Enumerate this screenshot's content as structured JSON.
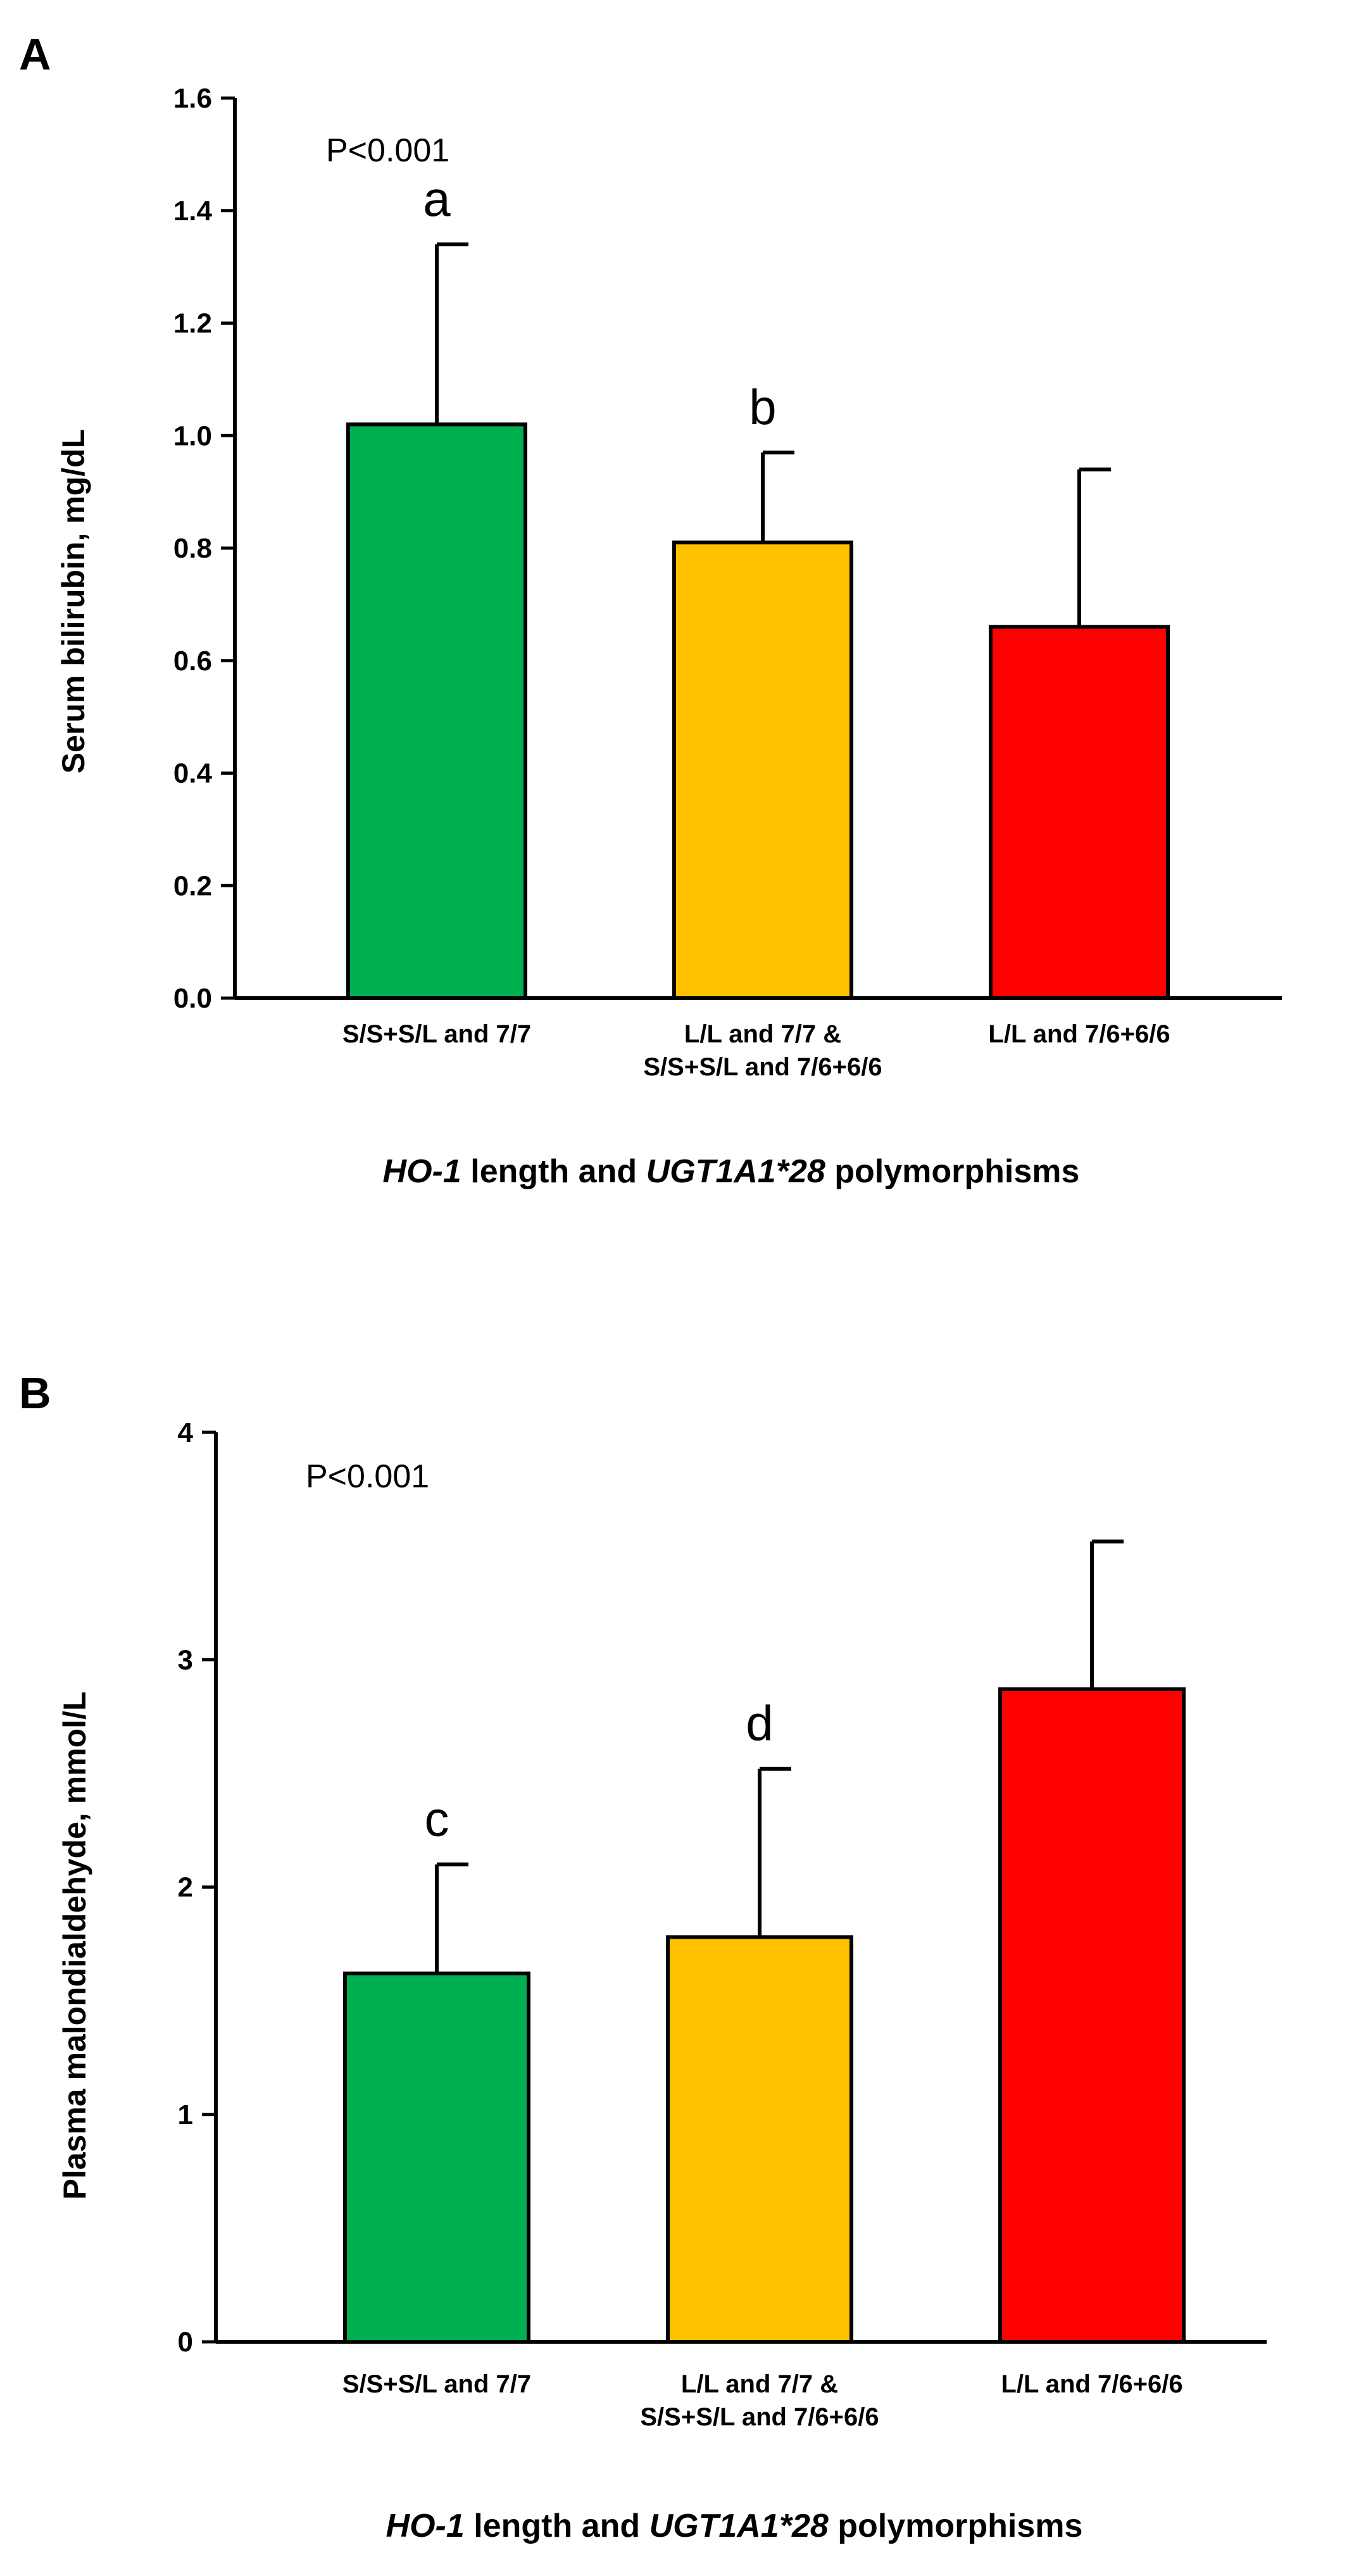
{
  "chart_data": [
    {
      "panel": "A",
      "type": "bar",
      "title": "",
      "categories": [
        [
          "S/S+S/L and 7/7"
        ],
        [
          "L/L and 7/7 &",
          "S/S+S/L and 7/6+6/6"
        ],
        [
          "L/L and 7/6+6/6"
        ]
      ],
      "values": [
        1.02,
        0.81,
        0.66
      ],
      "errors": [
        0.32,
        0.16,
        0.28
      ],
      "colors": [
        "#00b050",
        "#ffc000",
        "#ff0000"
      ],
      "sig_letters": [
        "a",
        "b",
        ""
      ],
      "annotation": "P<0.001",
      "ylabel": "Serum bilirubin, mg/dL",
      "xlabel": {
        "pre_italic": "HO-1",
        "mid": " length and ",
        "italic2": "UGT1A1*28",
        "post": " polymorphisms"
      },
      "ylim": [
        0,
        1.6
      ],
      "yticks": [
        "0.0",
        "0.2",
        "0.4",
        "0.6",
        "0.8",
        "1.0",
        "1.2",
        "1.4",
        "1.6"
      ],
      "grid": false
    },
    {
      "panel": "B",
      "type": "bar",
      "title": "",
      "categories": [
        [
          "S/S+S/L and 7/7"
        ],
        [
          "L/L and 7/7 &",
          "S/S+S/L and 7/6+6/6"
        ],
        [
          "L/L and 7/6+6/6"
        ]
      ],
      "values": [
        1.62,
        1.78,
        2.87
      ],
      "errors": [
        0.48,
        0.74,
        0.65
      ],
      "colors": [
        "#00b050",
        "#ffc000",
        "#ff0000"
      ],
      "sig_letters": [
        "c",
        "d",
        ""
      ],
      "annotation": "P<0.001",
      "ylabel": "Plasma malondialdehyde, mmol/L",
      "xlabel": {
        "pre_italic": "HO-1",
        "mid": " length and ",
        "italic2": "UGT1A1*28",
        "post": " polymorphisms"
      },
      "ylim": [
        0,
        4
      ],
      "yticks": [
        "0",
        "1",
        "2",
        "3",
        "4"
      ],
      "grid": false
    }
  ]
}
